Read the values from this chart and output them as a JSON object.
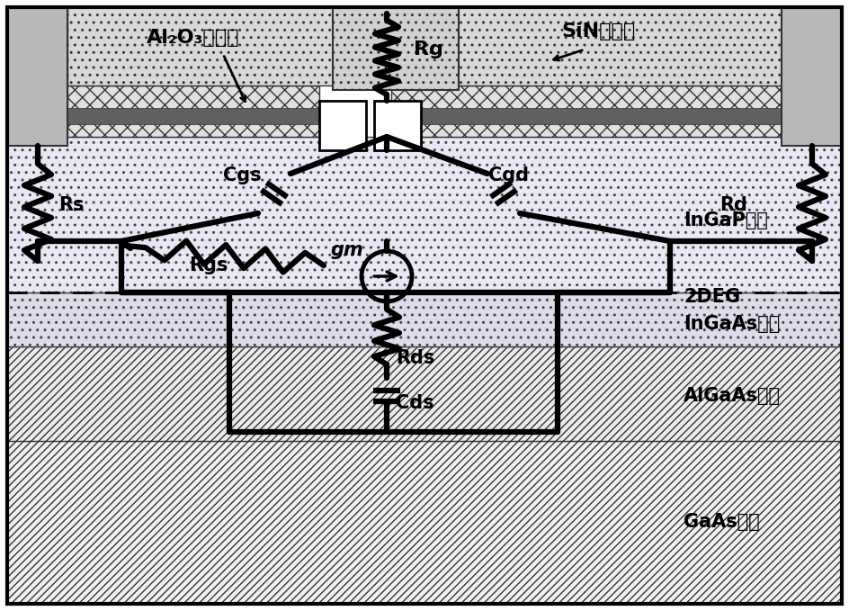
{
  "fig_width": 9.44,
  "fig_height": 6.79,
  "dpi": 100,
  "labels": {
    "al2o3": "Al₂O₃氧化层",
    "sin": "SiN钓化层",
    "rs": "Rs",
    "rd": "Rd",
    "rg": "Rg",
    "rgs": "Rgs",
    "cgs": "Cgs",
    "cgd": "Cgd",
    "gm": "gm",
    "rds": "Rds",
    "cds": "Cds",
    "ingap": "InGaP势垒",
    "2deg": "2DEG",
    "ingaas": "InGaAs沟道",
    "algaas": "AlGaAs缓冲",
    "gaas": "GaAs衬底"
  },
  "colors": {
    "gaas_fc": "#f2f2f2",
    "gaas_ec": "#333333",
    "algaas_fc": "#ececec",
    "ingaas_fc": "#dcdcec",
    "ingap_fc": "#e8e8f5",
    "al2o3_fc": "#e4e4e4",
    "sin_fc": "#d8d8d8",
    "metal_fc": "#bbbbbb",
    "gate_pad_fc": "#cccccc",
    "black": "#000000",
    "white": "#ffffff"
  }
}
